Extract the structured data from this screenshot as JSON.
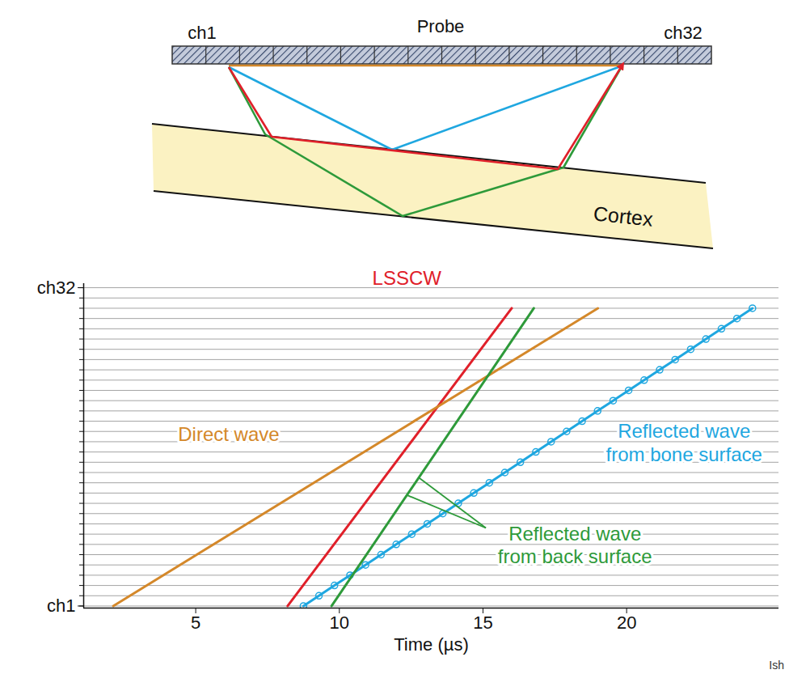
{
  "chart_data": {
    "type": "line",
    "x_label": "Time (µs)",
    "xlim": [
      1.1,
      25.3
    ],
    "xticks": [
      5,
      10,
      15,
      20
    ],
    "ylim": [
      0.8,
      32.4
    ],
    "yticks": [
      {
        "value": 1,
        "label": "ch1"
      },
      {
        "value": 32,
        "label": "ch32"
      }
    ],
    "channels": [
      1,
      2,
      3,
      4,
      5,
      6,
      7,
      8,
      9,
      10,
      11,
      12,
      13,
      14,
      15,
      16,
      17,
      18,
      19,
      20,
      21,
      22,
      23,
      24,
      25,
      26,
      27,
      28,
      29,
      30,
      31,
      32
    ],
    "series": [
      {
        "name": "LSSCW",
        "color": "#e0202a",
        "line_style": "solid",
        "marker": "none",
        "x": [
          8.2,
          16.0
        ],
        "values": [
          1,
          30
        ]
      },
      {
        "name": "Direct wave",
        "color": "#d4882a",
        "line_style": "solid",
        "marker": "none",
        "x": [
          2.13,
          19.0
        ],
        "values": [
          1,
          30
        ]
      },
      {
        "name": "Reflected wave from bone surface",
        "color": "#1fa7e0",
        "line_style": "solid",
        "marker": "circle",
        "x": [
          8.75,
          9.29,
          9.83,
          10.37,
          10.91,
          11.45,
          11.98,
          12.52,
          13.06,
          13.6,
          14.14,
          14.68,
          15.22,
          15.76,
          16.3,
          16.84,
          17.37,
          17.91,
          18.45,
          18.99,
          19.53,
          20.07,
          20.61,
          21.15,
          21.69,
          22.23,
          22.76,
          23.3,
          23.84,
          24.38
        ],
        "values": [
          1,
          2,
          3,
          4,
          5,
          6,
          7,
          8,
          9,
          10,
          11,
          12,
          13,
          14,
          15,
          16,
          17,
          18,
          19,
          20,
          21,
          22,
          23,
          24,
          25,
          26,
          27,
          28,
          29,
          30
        ]
      },
      {
        "name": "Reflected wave from back surface",
        "color": "#2e9a3a",
        "line_style": "solid",
        "marker": "none",
        "x": [
          9.73,
          16.77
        ],
        "values": [
          1,
          30
        ]
      }
    ]
  },
  "diagram": {
    "probe_label": "Probe",
    "left_channel": "ch1",
    "right_channel": "ch32",
    "layer_label": "Cortex"
  },
  "credit": "Ish"
}
